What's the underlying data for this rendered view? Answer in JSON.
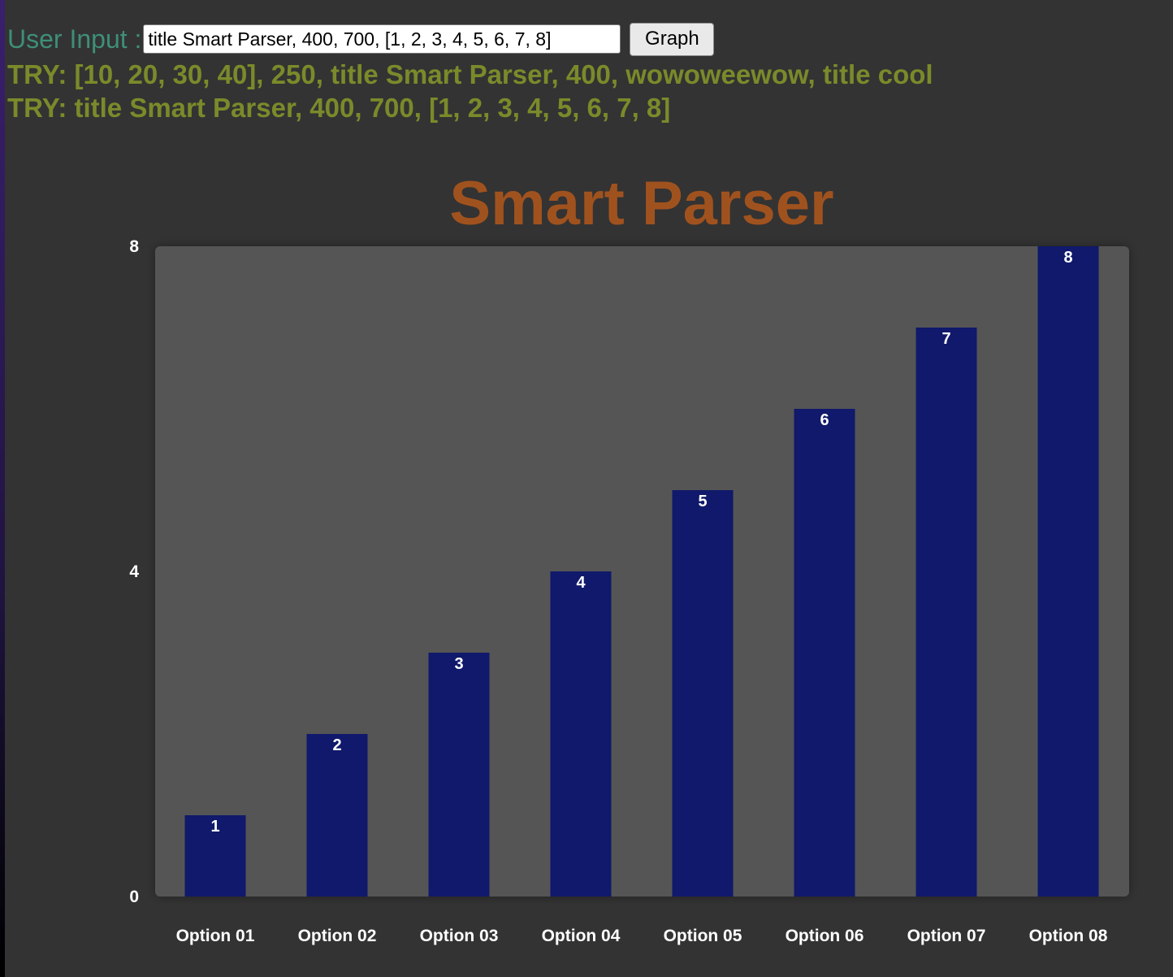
{
  "header": {
    "input_label": "User Input :",
    "input_value": "title Smart Parser, 400, 700, [1, 2, 3, 4, 5, 6, 7, 8]",
    "graph_button_label": "Graph",
    "try_lines": [
      "TRY: [10, 20, 30, 40], 250, title Smart Parser, 400, wowoweewow, title cool",
      "TRY: title Smart Parser, 400, 700, [1, 2, 3, 4, 5, 6, 7, 8]"
    ]
  },
  "colors": {
    "background": "#333333",
    "plot_area": "#555555",
    "bar": "#10196b",
    "title": "#a0521e",
    "try_text": "#7b8a2a",
    "input_label": "#3e8f78"
  },
  "chart_data": {
    "type": "bar",
    "title": "Smart Parser",
    "xlabel": "",
    "ylabel": "",
    "categories": [
      "Option 01",
      "Option 02",
      "Option 03",
      "Option 04",
      "Option 05",
      "Option 06",
      "Option 07",
      "Option 08"
    ],
    "values": [
      1,
      2,
      3,
      4,
      5,
      6,
      7,
      8
    ],
    "ylim": [
      0,
      8
    ],
    "yticks": [
      0,
      4,
      8
    ],
    "grid": false,
    "legend": "none"
  }
}
